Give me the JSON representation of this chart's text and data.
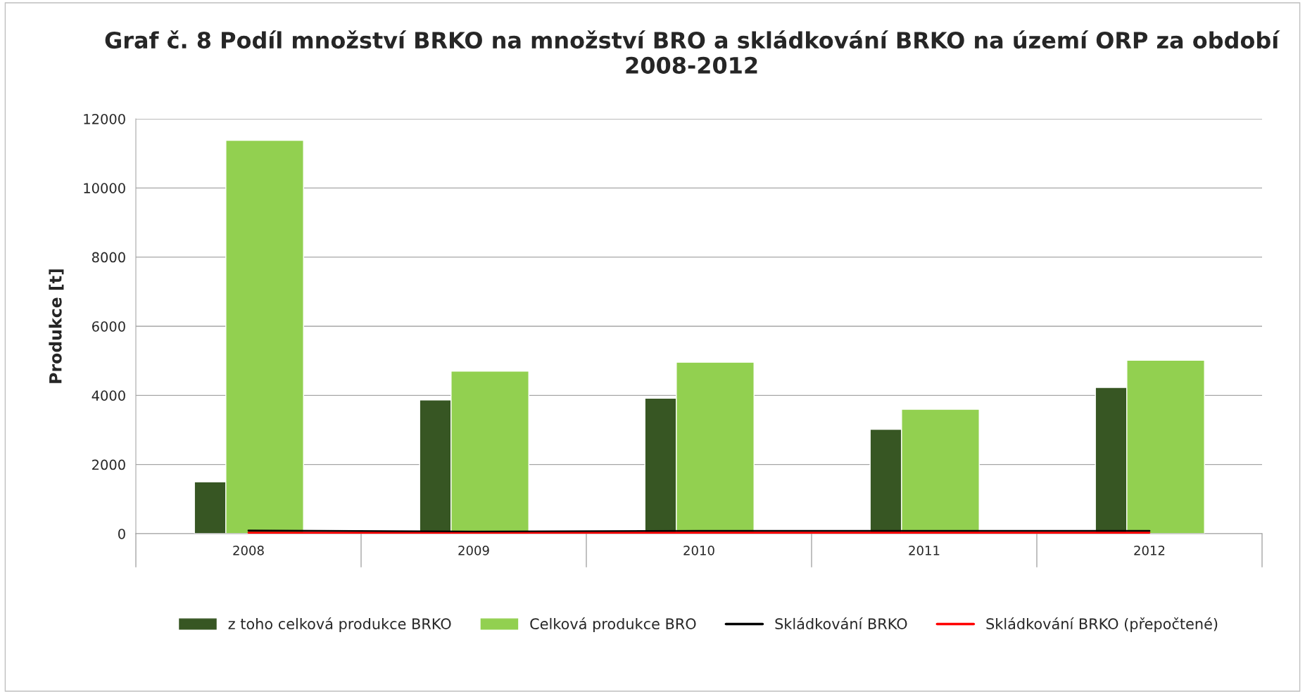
{
  "chart_data": {
    "type": "bar",
    "title": "Graf č. 8 Podíl množství BRKO na množství BRO a skládkování BRKO na území ORP za období 2008-2012",
    "ylabel": "Produkce [t]",
    "categories": [
      "2008",
      "2009",
      "2010",
      "2011",
      "2012"
    ],
    "series": [
      {
        "name": "z toho celková produkce BRKO",
        "color": "#375623",
        "values": [
          1500,
          3870,
          3920,
          3020,
          4230
        ]
      },
      {
        "name": "Celková produkce BRO",
        "color": "#92d050",
        "values": [
          11380,
          4700,
          4960,
          3600,
          5020
        ]
      },
      {
        "type": "line",
        "name": "Skládkování BRKO",
        "color": "#000000",
        "values": [
          90,
          60,
          80,
          80,
          80
        ]
      },
      {
        "type": "line",
        "name": "Skládkování BRKO (přepočtené)",
        "color": "#ff0000",
        "values": [
          30,
          10,
          30,
          30,
          30
        ]
      }
    ],
    "ylim": [
      0,
      12000
    ],
    "yticks": [
      0,
      2000,
      4000,
      6000,
      8000,
      10000,
      12000
    ],
    "grid": "y",
    "legend": "bottom"
  }
}
